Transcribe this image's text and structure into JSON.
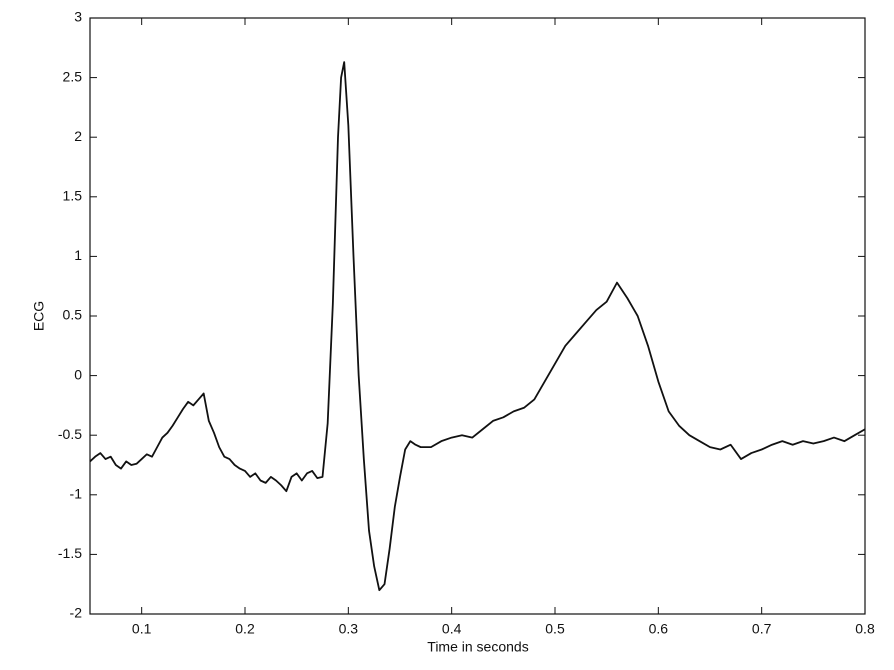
{
  "chart_data": {
    "type": "line",
    "xlabel": "Time in seconds",
    "ylabel": "ECG",
    "xlim": [
      0.05,
      0.8
    ],
    "ylim": [
      -2,
      3
    ],
    "xticks": [
      0.1,
      0.2,
      0.3,
      0.4,
      0.5,
      0.6,
      0.7,
      0.8
    ],
    "yticks": [
      -2,
      -1.5,
      -1,
      -0.5,
      0,
      0.5,
      1,
      1.5,
      2,
      2.5,
      3
    ],
    "grid": false,
    "x": [
      0.05,
      0.055,
      0.06,
      0.065,
      0.07,
      0.075,
      0.08,
      0.085,
      0.09,
      0.095,
      0.1,
      0.105,
      0.11,
      0.115,
      0.12,
      0.125,
      0.13,
      0.135,
      0.14,
      0.145,
      0.15,
      0.155,
      0.16,
      0.165,
      0.17,
      0.175,
      0.18,
      0.185,
      0.19,
      0.195,
      0.2,
      0.205,
      0.21,
      0.215,
      0.22,
      0.225,
      0.23,
      0.235,
      0.24,
      0.245,
      0.25,
      0.255,
      0.26,
      0.265,
      0.27,
      0.275,
      0.28,
      0.285,
      0.29,
      0.293,
      0.296,
      0.3,
      0.305,
      0.31,
      0.315,
      0.32,
      0.325,
      0.33,
      0.335,
      0.34,
      0.345,
      0.35,
      0.355,
      0.36,
      0.365,
      0.37,
      0.38,
      0.39,
      0.4,
      0.41,
      0.42,
      0.43,
      0.44,
      0.45,
      0.46,
      0.47,
      0.48,
      0.49,
      0.5,
      0.51,
      0.52,
      0.53,
      0.54,
      0.55,
      0.56,
      0.57,
      0.58,
      0.59,
      0.6,
      0.61,
      0.62,
      0.63,
      0.64,
      0.65,
      0.66,
      0.67,
      0.68,
      0.69,
      0.7,
      0.71,
      0.72,
      0.73,
      0.74,
      0.75,
      0.76,
      0.77,
      0.78,
      0.79,
      0.8
    ],
    "series": [
      {
        "name": "ECG",
        "color": "#111111",
        "values": [
          -0.72,
          -0.68,
          -0.65,
          -0.7,
          -0.68,
          -0.75,
          -0.78,
          -0.72,
          -0.75,
          -0.74,
          -0.7,
          -0.66,
          -0.68,
          -0.6,
          -0.52,
          -0.48,
          -0.42,
          -0.35,
          -0.28,
          -0.22,
          -0.25,
          -0.2,
          -0.15,
          -0.38,
          -0.48,
          -0.6,
          -0.68,
          -0.7,
          -0.75,
          -0.78,
          -0.8,
          -0.85,
          -0.82,
          -0.88,
          -0.9,
          -0.85,
          -0.88,
          -0.92,
          -0.97,
          -0.85,
          -0.82,
          -0.88,
          -0.82,
          -0.8,
          -0.86,
          -0.85,
          -0.4,
          0.6,
          2.0,
          2.5,
          2.63,
          2.1,
          1.0,
          0.0,
          -0.7,
          -1.3,
          -1.6,
          -1.8,
          -1.75,
          -1.45,
          -1.1,
          -0.85,
          -0.62,
          -0.55,
          -0.58,
          -0.6,
          -0.6,
          -0.55,
          -0.52,
          -0.5,
          -0.52,
          -0.45,
          -0.38,
          -0.35,
          -0.3,
          -0.27,
          -0.2,
          -0.05,
          0.1,
          0.25,
          0.35,
          0.45,
          0.55,
          0.62,
          0.78,
          0.65,
          0.5,
          0.25,
          -0.05,
          -0.3,
          -0.42,
          -0.5,
          -0.55,
          -0.6,
          -0.62,
          -0.58,
          -0.7,
          -0.65,
          -0.62,
          -0.58,
          -0.55,
          -0.58,
          -0.55,
          -0.57,
          -0.55,
          -0.52,
          -0.55,
          -0.5,
          -0.45
        ]
      }
    ]
  }
}
